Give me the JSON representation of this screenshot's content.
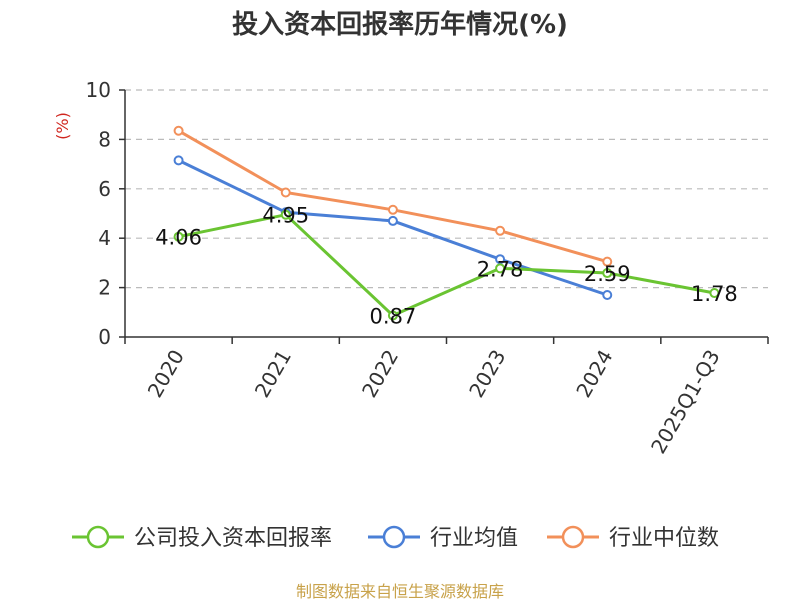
{
  "chart_data": {
    "type": "line",
    "title": "投入资本回报率历年情况(%)",
    "ylabel": "(%)",
    "xlabel": "",
    "categories": [
      "2020",
      "2021",
      "2022",
      "2023",
      "2024",
      "2025Q1-Q3"
    ],
    "ylim": [
      0,
      10
    ],
    "yticks": [
      0,
      2,
      4,
      6,
      8,
      10
    ],
    "grid": true,
    "legend_position": "bottom",
    "series": [
      {
        "name": "公司投入资本回报率",
        "color": "#6ac432",
        "values": [
          4.06,
          4.95,
          0.87,
          2.78,
          2.59,
          1.78
        ],
        "labels": [
          "4.06",
          "4.95",
          "0.87",
          "2.78",
          "2.59",
          "1.78"
        ]
      },
      {
        "name": "行业均值",
        "color": "#4a7fd6",
        "values": [
          7.15,
          5.05,
          4.7,
          3.15,
          1.7,
          null
        ]
      },
      {
        "name": "行业中位数",
        "color": "#f2905a",
        "values": [
          8.35,
          5.85,
          5.15,
          4.3,
          3.05,
          null
        ]
      }
    ]
  },
  "footer": {
    "source": "制图数据来自恒生聚源数据库"
  }
}
